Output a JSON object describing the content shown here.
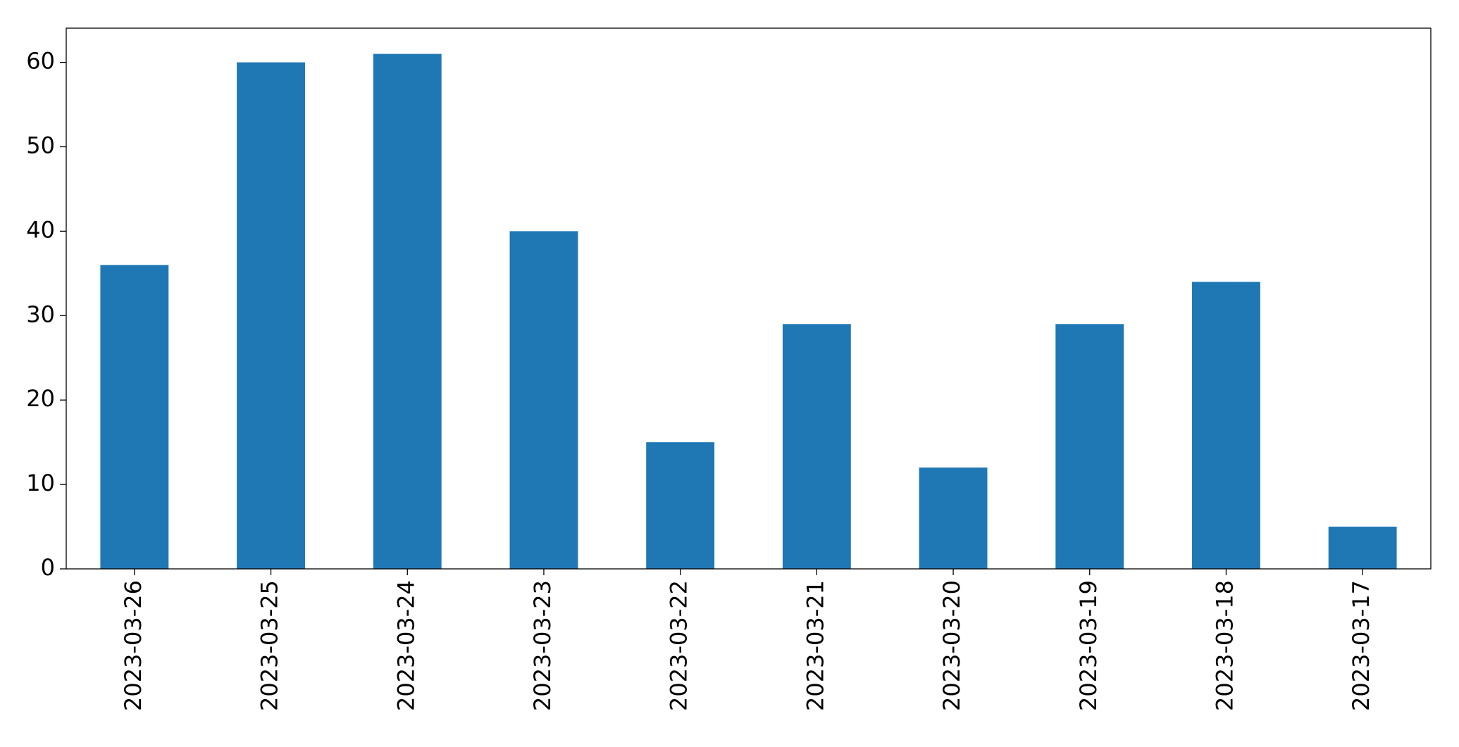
{
  "chart_data": {
    "type": "bar",
    "categories": [
      "2023-03-26",
      "2023-03-25",
      "2023-03-24",
      "2023-03-23",
      "2023-03-22",
      "2023-03-21",
      "2023-03-20",
      "2023-03-19",
      "2023-03-18",
      "2023-03-17"
    ],
    "values": [
      36,
      60,
      61,
      40,
      15,
      29,
      12,
      29,
      34,
      5
    ],
    "color": "#1f77b4",
    "ylim": [
      0,
      64.05
    ],
    "yticks": [
      0,
      10,
      20,
      30,
      40,
      50,
      60
    ],
    "grid": false
  }
}
